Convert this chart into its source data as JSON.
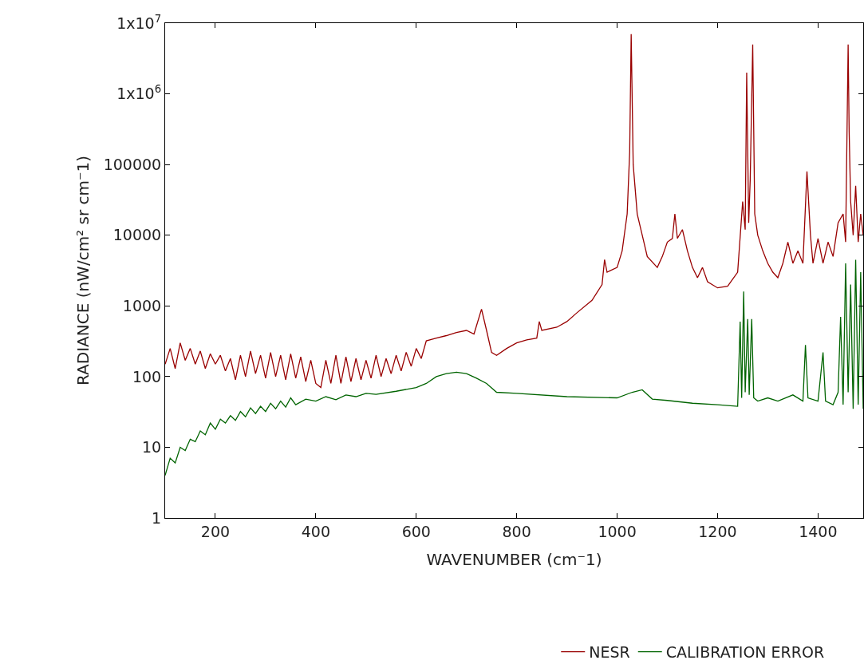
{
  "chart_data": {
    "type": "line",
    "xlabel": "WAVENUMBER (cm⁻1)",
    "ylabel": "RADIANCE (nW/cm² sr cm⁻1)",
    "log": "y",
    "legend": "bottom",
    "marker": "none",
    "line_style": "solid",
    "xlim": [
      100,
      1490
    ],
    "xticks": [
      200,
      400,
      600,
      800,
      1000,
      1200,
      1400
    ],
    "ylim": [
      1,
      10000000
    ],
    "yticks": [
      1,
      10,
      100,
      1000,
      10000,
      100000,
      {
        "value": 1000000,
        "label": "1x10$^{6}$"
      },
      {
        "value": 10000000,
        "label": "1x10$^{7}$"
      }
    ],
    "series": [
      {
        "name": "NESR",
        "color": "#990000",
        "x": [
          100,
          110,
          120,
          130,
          140,
          150,
          160,
          170,
          180,
          190,
          200,
          210,
          220,
          230,
          240,
          250,
          260,
          270,
          280,
          290,
          300,
          310,
          320,
          330,
          340,
          350,
          360,
          370,
          380,
          390,
          400,
          410,
          420,
          430,
          440,
          450,
          460,
          470,
          480,
          490,
          500,
          510,
          520,
          530,
          540,
          550,
          560,
          570,
          580,
          590,
          600,
          610,
          620,
          640,
          660,
          680,
          700,
          715,
          730,
          740,
          750,
          760,
          780,
          800,
          820,
          840,
          845,
          850,
          880,
          900,
          920,
          950,
          970,
          975,
          980,
          1000,
          1010,
          1020,
          1025,
          1028,
          1032,
          1040,
          1050,
          1060,
          1080,
          1090,
          1100,
          1110,
          1115,
          1120,
          1130,
          1140,
          1150,
          1160,
          1170,
          1180,
          1200,
          1220,
          1240,
          1250,
          1255,
          1258,
          1262,
          1265,
          1270,
          1274,
          1280,
          1290,
          1300,
          1310,
          1320,
          1330,
          1340,
          1350,
          1360,
          1370,
          1378,
          1385,
          1390,
          1400,
          1410,
          1420,
          1430,
          1440,
          1450,
          1455,
          1460,
          1462,
          1465,
          1470,
          1475,
          1480,
          1485,
          1490
        ],
        "values": [
          150,
          250,
          130,
          300,
          170,
          250,
          150,
          230,
          130,
          210,
          150,
          200,
          120,
          180,
          90,
          200,
          100,
          230,
          110,
          200,
          95,
          220,
          100,
          200,
          90,
          210,
          95,
          190,
          85,
          170,
          80,
          70,
          170,
          80,
          200,
          80,
          190,
          85,
          180,
          90,
          170,
          95,
          200,
          100,
          180,
          110,
          200,
          120,
          220,
          140,
          250,
          180,
          320,
          350,
          380,
          420,
          450,
          400,
          900,
          450,
          220,
          200,
          250,
          300,
          330,
          350,
          600,
          450,
          500,
          600,
          800,
          1200,
          2000,
          4500,
          3000,
          3500,
          6000,
          20000,
          150000,
          7000000,
          100000,
          20000,
          10000,
          5000,
          3500,
          5000,
          8000,
          9000,
          20000,
          9000,
          12000,
          6000,
          3500,
          2500,
          3500,
          2200,
          1800,
          1900,
          3000,
          30000,
          12000,
          2000000,
          15000,
          60000,
          5000000,
          20000,
          10000,
          6000,
          4000,
          3000,
          2500,
          4000,
          8000,
          4000,
          6000,
          4000,
          80000,
          10000,
          4000,
          9000,
          4000,
          8000,
          5000,
          15000,
          20000,
          8000,
          5000000,
          300000,
          30000,
          10000,
          50000,
          8000,
          20000,
          10000
        ]
      },
      {
        "name": "CALIBRATION ERROR",
        "color": "#006400",
        "x": [
          100,
          110,
          120,
          130,
          140,
          150,
          160,
          170,
          180,
          190,
          200,
          210,
          220,
          230,
          240,
          250,
          260,
          270,
          280,
          290,
          300,
          310,
          320,
          330,
          340,
          350,
          360,
          380,
          400,
          420,
          440,
          460,
          480,
          500,
          520,
          560,
          600,
          620,
          640,
          660,
          680,
          700,
          720,
          740,
          760,
          800,
          900,
          1000,
          1030,
          1050,
          1070,
          1100,
          1150,
          1200,
          1240,
          1245,
          1248,
          1252,
          1255,
          1260,
          1263,
          1268,
          1272,
          1280,
          1300,
          1320,
          1350,
          1370,
          1375,
          1380,
          1400,
          1410,
          1415,
          1430,
          1440,
          1445,
          1450,
          1455,
          1460,
          1465,
          1470,
          1475,
          1480,
          1485,
          1490
        ],
        "values": [
          4,
          7,
          6,
          10,
          9,
          13,
          12,
          17,
          15,
          22,
          18,
          25,
          22,
          28,
          24,
          32,
          27,
          36,
          30,
          38,
          32,
          42,
          35,
          45,
          37,
          50,
          40,
          48,
          45,
          52,
          47,
          55,
          52,
          58,
          56,
          62,
          70,
          80,
          100,
          110,
          115,
          110,
          95,
          80,
          60,
          58,
          52,
          50,
          60,
          65,
          48,
          46,
          42,
          40,
          38,
          600,
          50,
          1600,
          60,
          650,
          55,
          650,
          50,
          45,
          50,
          45,
          55,
          45,
          280,
          50,
          45,
          220,
          45,
          40,
          60,
          700,
          40,
          4000,
          60,
          2000,
          35,
          4500,
          40,
          3000,
          35
        ]
      }
    ]
  }
}
